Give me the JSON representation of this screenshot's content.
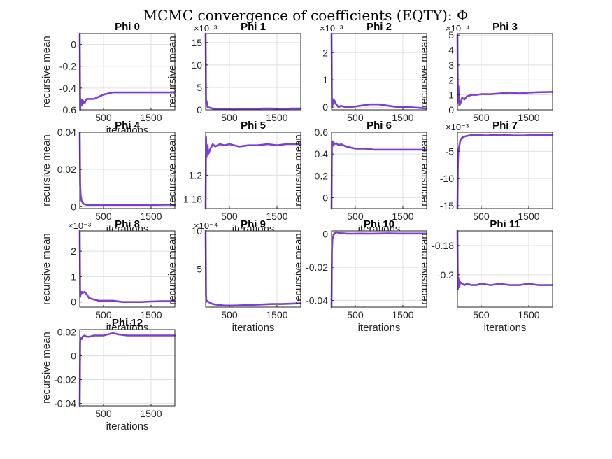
{
  "figure": {
    "title": "MCMC convergence of coefficients (EQTY): Φ",
    "line_color": "#7e3fd1",
    "grid": true
  },
  "chart_data": [
    {
      "type": "line",
      "title": "Phi 0",
      "xlabel": "iterations",
      "ylabel": "recursive mean",
      "exponent": "",
      "xlim": [
        1,
        2000
      ],
      "ylim": [
        -0.6,
        0.1
      ],
      "xticks": [
        500,
        1500
      ],
      "yticks": [
        -0.6,
        -0.4,
        -0.2,
        0
      ],
      "ytick_labels": [
        "-0.6",
        "-0.4",
        "-0.2",
        "0"
      ],
      "x": [
        1,
        10,
        20,
        40,
        60,
        100,
        150,
        200,
        260,
        300,
        400,
        500,
        600,
        700,
        800,
        1000,
        1200,
        1400,
        1600,
        1800,
        2000
      ],
      "series": [
        {
          "values": [
            0.1,
            -0.6,
            -0.5,
            -0.56,
            -0.51,
            -0.54,
            -0.5,
            -0.5,
            -0.5,
            -0.5,
            -0.48,
            -0.46,
            -0.45,
            -0.44,
            -0.44,
            -0.44,
            -0.44,
            -0.44,
            -0.44,
            -0.44,
            -0.44
          ]
        }
      ]
    },
    {
      "type": "line",
      "title": "Phi 1",
      "xlabel": "",
      "ylabel": "recursive mean",
      "exponent": "×10⁻³",
      "xlim": [
        1,
        2000
      ],
      "ylim": [
        0,
        17
      ],
      "xticks": [
        500,
        1500
      ],
      "yticks": [
        0,
        5,
        10,
        15
      ],
      "ytick_labels": [
        "0",
        "5",
        "10",
        "15"
      ],
      "x": [
        1,
        10,
        20,
        40,
        80,
        150,
        250,
        400,
        600,
        800,
        1000,
        1200,
        1400,
        1600,
        1800,
        2000
      ],
      "series": [
        {
          "values": [
            17,
            1.5,
            2.0,
            0.6,
            0.5,
            0.3,
            0.2,
            0.15,
            0.1,
            0.2,
            0.2,
            0.3,
            0.3,
            0.2,
            0.3,
            0.3
          ]
        }
      ]
    },
    {
      "type": "line",
      "title": "Phi 2",
      "xlabel": "",
      "ylabel": "",
      "exponent": "×10⁻³",
      "xlim": [
        1,
        2000
      ],
      "ylim": [
        -0.1,
        2.7
      ],
      "xticks": [
        500,
        1500
      ],
      "yticks": [
        0,
        1,
        2
      ],
      "ytick_labels": [
        "0",
        "1",
        "2"
      ],
      "x": [
        1,
        10,
        20,
        40,
        60,
        100,
        150,
        200,
        300,
        400,
        600,
        800,
        1000,
        1200,
        1400,
        1600,
        1800,
        2000
      ],
      "series": [
        {
          "values": [
            2.7,
            0.0,
            0.3,
            0.1,
            0.25,
            0.1,
            0.0,
            0.05,
            0.0,
            0.0,
            0.05,
            0.1,
            0.1,
            0.05,
            0.0,
            0.0,
            -0.02,
            -0.05
          ]
        }
      ]
    },
    {
      "type": "line",
      "title": "Phi 3",
      "xlabel": "",
      "ylabel": "recursive mean",
      "exponent": "×10⁻⁴",
      "xlim": [
        1,
        2000
      ],
      "ylim": [
        0,
        5.1
      ],
      "xticks": [
        500,
        1500
      ],
      "yticks": [
        0,
        1,
        2,
        3,
        4,
        5
      ],
      "ytick_labels": [
        "0",
        "1",
        "2",
        "3",
        "4",
        "5"
      ],
      "x": [
        1,
        10,
        20,
        40,
        60,
        100,
        150,
        200,
        300,
        400,
        500,
        700,
        900,
        1100,
        1300,
        1500,
        1700,
        2000
      ],
      "series": [
        {
          "values": [
            5,
            0.5,
            1.6,
            0.3,
            0.4,
            0.8,
            0.7,
            0.9,
            1.0,
            1.0,
            1.05,
            1.05,
            1.1,
            1.15,
            1.1,
            1.15,
            1.18,
            1.2
          ]
        }
      ]
    },
    {
      "type": "line",
      "title": "Phi 4",
      "xlabel": "iterations",
      "ylabel": "recursive mean",
      "exponent": "",
      "xlim": [
        1,
        2000
      ],
      "ylim": [
        -0.001,
        0.04
      ],
      "xticks": [
        500,
        1500
      ],
      "yticks": [
        0,
        0.02,
        0.04
      ],
      "ytick_labels": [
        "0",
        "0.02",
        "0.04"
      ],
      "x": [
        1,
        10,
        20,
        40,
        80,
        150,
        250,
        400,
        600,
        800,
        1000,
        1200,
        1400,
        1600,
        1800,
        2000
      ],
      "series": [
        {
          "values": [
            0.04,
            0.012,
            0.006,
            0.003,
            0.0015,
            0.001,
            0.0008,
            0.0008,
            0.0009,
            0.0009,
            0.001,
            0.001,
            0.001,
            0.001,
            0.0011,
            0.0011
          ]
        }
      ]
    },
    {
      "type": "line",
      "title": "Phi 5",
      "xlabel": "iterations",
      "ylabel": "recursive mean",
      "exponent": "",
      "xlim": [
        1,
        2000
      ],
      "ylim": [
        1.172,
        1.236
      ],
      "xticks": [
        500,
        1500
      ],
      "yticks": [
        1.18,
        1.2
      ],
      "ytick_labels": [
        "1.18",
        "1.2"
      ],
      "x": [
        1,
        10,
        20,
        40,
        60,
        100,
        150,
        200,
        300,
        400,
        500,
        700,
        900,
        1100,
        1300,
        1500,
        1700,
        2000
      ],
      "series": [
        {
          "values": [
            1.172,
            1.232,
            1.215,
            1.225,
            1.218,
            1.222,
            1.226,
            1.224,
            1.226,
            1.225,
            1.226,
            1.224,
            1.225,
            1.225,
            1.226,
            1.225,
            1.226,
            1.226
          ]
        }
      ]
    },
    {
      "type": "line",
      "title": "Phi 6",
      "xlabel": "iterations",
      "ylabel": "recursive mean",
      "exponent": "",
      "xlim": [
        1,
        2000
      ],
      "ylim": [
        -0.1,
        0.6
      ],
      "xticks": [
        500,
        1500
      ],
      "yticks": [
        0,
        0.2,
        0.4,
        0.6
      ],
      "ytick_labels": [
        "0",
        "0.2",
        "0.4",
        "0.6"
      ],
      "x": [
        1,
        10,
        20,
        40,
        60,
        100,
        150,
        200,
        300,
        400,
        500,
        700,
        900,
        1100,
        1300,
        1500,
        1700,
        2000
      ],
      "series": [
        {
          "values": [
            -0.1,
            0.52,
            0.47,
            0.51,
            0.49,
            0.5,
            0.48,
            0.49,
            0.47,
            0.46,
            0.45,
            0.45,
            0.44,
            0.44,
            0.44,
            0.44,
            0.44,
            0.44
          ]
        }
      ]
    },
    {
      "type": "line",
      "title": "Phi 7",
      "xlabel": "",
      "ylabel": "recursive mean",
      "exponent": "×10⁻³",
      "xlim": [
        1,
        2000
      ],
      "ylim": [
        -15.5,
        -1.5
      ],
      "xticks": [
        500,
        1500
      ],
      "yticks": [
        -15,
        -10,
        -5
      ],
      "ytick_labels": [
        "-15",
        "-10",
        "-5"
      ],
      "x": [
        1,
        10,
        20,
        40,
        60,
        100,
        150,
        200,
        300,
        400,
        600,
        800,
        1000,
        1200,
        1400,
        1600,
        1800,
        2000
      ],
      "series": [
        {
          "values": [
            -15.5,
            -8,
            -5,
            -4,
            -3,
            -2.5,
            -2.3,
            -2.2,
            -2.0,
            -2.0,
            -2.1,
            -2.0,
            -2.0,
            -2.1,
            -2.1,
            -2.0,
            -2.0,
            -2.0
          ]
        }
      ]
    },
    {
      "type": "line",
      "title": "Phi 8",
      "xlabel": "iterations",
      "ylabel": "recursive mean",
      "exponent": "×10⁻³",
      "xlim": [
        1,
        2000
      ],
      "ylim": [
        -0.2,
        2.8
      ],
      "xticks": [
        500,
        1500
      ],
      "yticks": [
        0,
        1,
        2
      ],
      "ytick_labels": [
        "0",
        "1",
        "2"
      ],
      "x": [
        1,
        10,
        20,
        40,
        60,
        100,
        150,
        200,
        300,
        400,
        500,
        700,
        900,
        1100,
        1300,
        1500,
        1700,
        2000
      ],
      "series": [
        {
          "values": [
            2.8,
            0.2,
            0.3,
            0.4,
            0.35,
            0.4,
            0.3,
            0.15,
            0.1,
            0.05,
            0.05,
            0.05,
            0.0,
            0.0,
            0.0,
            0.02,
            0.03,
            0.03
          ]
        }
      ]
    },
    {
      "type": "line",
      "title": "Phi 9",
      "xlabel": "iterations",
      "ylabel": "recursive mean",
      "exponent": "×10⁻⁴",
      "xlim": [
        1,
        2000
      ],
      "ylim": [
        0,
        10
      ],
      "xticks": [
        500,
        1500
      ],
      "yticks": [
        5,
        10
      ],
      "ytick_labels": [
        "5",
        "10"
      ],
      "x": [
        1,
        10,
        20,
        40,
        80,
        150,
        250,
        400,
        600,
        800,
        1000,
        1200,
        1400,
        1600,
        1800,
        2000
      ],
      "series": [
        {
          "values": [
            10,
            1.5,
            0.7,
            0.8,
            0.6,
            0.4,
            0.3,
            0.2,
            0.2,
            0.25,
            0.3,
            0.35,
            0.4,
            0.4,
            0.45,
            0.5
          ]
        }
      ]
    },
    {
      "type": "line",
      "title": "Phi 10",
      "xlabel": "iterations",
      "ylabel": "recursive mean",
      "exponent": "",
      "xlim": [
        1,
        2000
      ],
      "ylim": [
        -0.044,
        0.002
      ],
      "xticks": [
        500,
        1500
      ],
      "yticks": [
        -0.04,
        -0.02,
        0
      ],
      "ytick_labels": [
        "-0.04",
        "-0.02",
        "0"
      ],
      "x": [
        1,
        10,
        20,
        40,
        60,
        100,
        150,
        200,
        300,
        400,
        600,
        800,
        1000,
        1200,
        1400,
        1600,
        1800,
        2000
      ],
      "series": [
        {
          "values": [
            -0.044,
            -0.01,
            -0.003,
            -0.001,
            0.0005,
            0.0012,
            0.0008,
            0.0006,
            0.0004,
            0.0003,
            0.0004,
            0.0003,
            0.0004,
            0.0005,
            0.0004,
            0.0004,
            0.0004,
            0.0004
          ]
        }
      ]
    },
    {
      "type": "line",
      "title": "Phi 11",
      "xlabel": "iterations",
      "ylabel": "recursive mean",
      "exponent": "",
      "xlim": [
        1,
        2000
      ],
      "ylim": [
        -0.222,
        -0.17
      ],
      "xticks": [
        500,
        1500
      ],
      "yticks": [
        -0.2,
        -0.18
      ],
      "ytick_labels": [
        "-0.2",
        "-0.18"
      ],
      "x": [
        1,
        10,
        20,
        40,
        60,
        100,
        150,
        200,
        300,
        400,
        500,
        700,
        900,
        1100,
        1300,
        1500,
        1700,
        2000
      ],
      "series": [
        {
          "values": [
            -0.17,
            -0.21,
            -0.202,
            -0.208,
            -0.205,
            -0.206,
            -0.207,
            -0.206,
            -0.207,
            -0.207,
            -0.206,
            -0.207,
            -0.206,
            -0.207,
            -0.207,
            -0.206,
            -0.207,
            -0.207
          ]
        }
      ]
    },
    {
      "type": "line",
      "title": "Phi 12",
      "xlabel": "iterations",
      "ylabel": "recursive mean",
      "exponent": "",
      "xlim": [
        1,
        2000
      ],
      "ylim": [
        -0.042,
        0.022
      ],
      "xticks": [
        500,
        1500
      ],
      "yticks": [
        -0.04,
        -0.02,
        0,
        0.02
      ],
      "ytick_labels": [
        "-0.04",
        "-0.02",
        "0",
        "0.02"
      ],
      "x": [
        1,
        10,
        20,
        40,
        60,
        100,
        150,
        200,
        300,
        400,
        500,
        600,
        700,
        800,
        1000,
        1200,
        1400,
        1600,
        1800,
        2000
      ],
      "series": [
        {
          "values": [
            -0.042,
            0.012,
            0.015,
            0.014,
            0.016,
            0.017,
            0.016,
            0.016,
            0.017,
            0.017,
            0.017,
            0.018,
            0.019,
            0.018,
            0.017,
            0.017,
            0.017,
            0.017,
            0.017,
            0.017
          ]
        }
      ]
    }
  ]
}
